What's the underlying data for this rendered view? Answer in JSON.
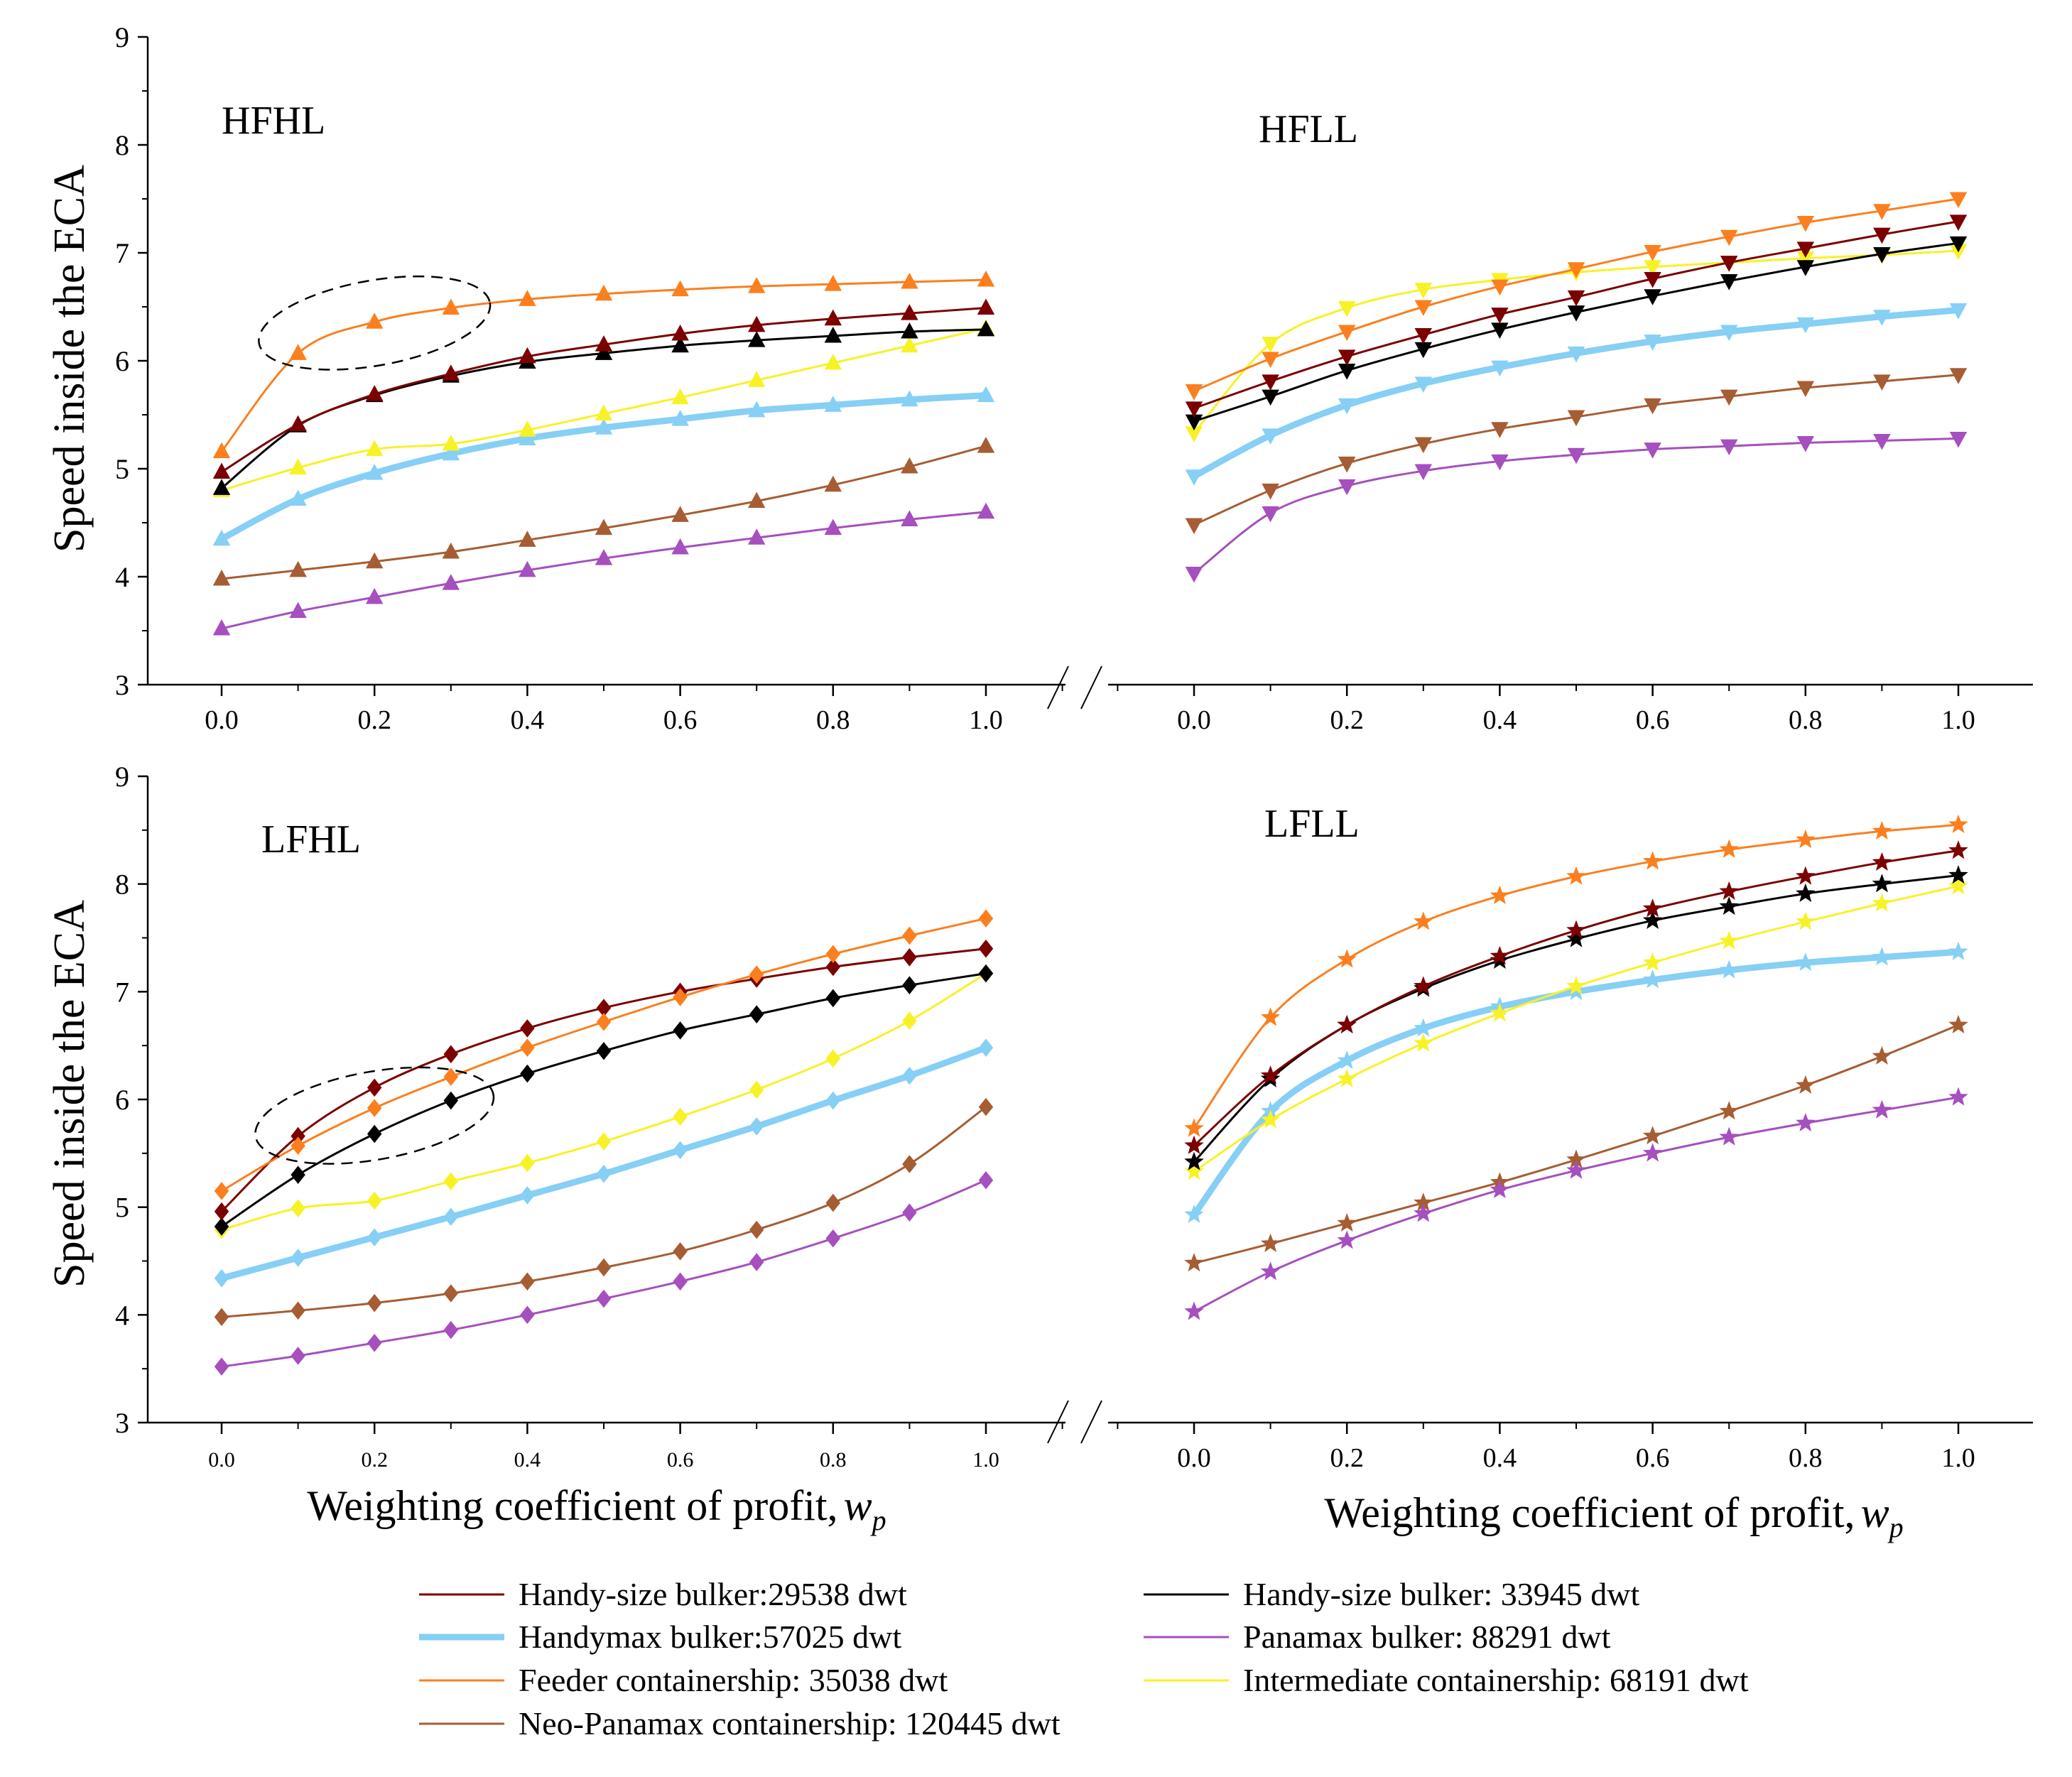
{
  "figure": {
    "ylabel": "Speed inside the ECA",
    "xlabel_main": "Weighting coefficient of profit,",
    "xlabel_symbol": "w",
    "xlabel_subscript": "p"
  },
  "styles": [
    {
      "id": "s1",
      "color": "#7b0000",
      "stroke_width": 3,
      "legend_text": "Handy-size bulker:29538 dwt"
    },
    {
      "id": "s2",
      "color": "#000000",
      "stroke_width": 3,
      "legend_text": "Handy-size bulker: 33945 dwt"
    },
    {
      "id": "s3",
      "color": "#86cff5",
      "stroke_width": 9,
      "legend_text": "Handymax bulker:57025 dwt"
    },
    {
      "id": "s4",
      "color": "#a64fbe",
      "stroke_width": 3,
      "legend_text": "Panamax bulker: 88291 dwt"
    },
    {
      "id": "s5",
      "color": "#fb7f1e",
      "stroke_width": 3,
      "legend_text": "Feeder containership: 35038 dwt"
    },
    {
      "id": "s6",
      "color": "#f7f227",
      "stroke_width": 3,
      "legend_text": "Intermediate containership: 68191 dwt"
    },
    {
      "id": "s7",
      "color": "#a65d33",
      "stroke_width": 3,
      "legend_text": "Neo-Panamax containership: 120445 dwt"
    }
  ],
  "chart_data": [
    {
      "id": "HFHL",
      "type": "line",
      "title": "HFHL",
      "marker": "triangle-up",
      "x": [
        0.0,
        0.1,
        0.2,
        0.3,
        0.4,
        0.5,
        0.6,
        0.7,
        0.8,
        0.9,
        1.0
      ],
      "xticks": [
        "0.0",
        "0.2",
        "0.4",
        "0.6",
        "0.8",
        "1.0"
      ],
      "yticks": [
        "3",
        "4",
        "5",
        "6",
        "7",
        "8",
        "9"
      ],
      "ylim": [
        3,
        9
      ],
      "series": [
        {
          "style": "s1",
          "values": [
            4.97,
            5.41,
            5.69,
            5.88,
            6.04,
            6.15,
            6.25,
            6.33,
            6.39,
            6.44,
            6.49
          ]
        },
        {
          "style": "s2",
          "values": [
            4.82,
            5.4,
            5.68,
            5.86,
            5.99,
            6.07,
            6.14,
            6.19,
            6.23,
            6.27,
            6.29
          ]
        },
        {
          "style": "s3",
          "values": [
            4.35,
            4.72,
            4.96,
            5.14,
            5.28,
            5.38,
            5.46,
            5.54,
            5.59,
            5.64,
            5.68
          ]
        },
        {
          "style": "s4",
          "values": [
            3.52,
            3.68,
            3.81,
            3.94,
            4.06,
            4.17,
            4.27,
            4.36,
            4.45,
            4.53,
            4.6
          ]
        },
        {
          "style": "s5",
          "values": [
            5.16,
            6.07,
            6.36,
            6.49,
            6.57,
            6.62,
            6.66,
            6.69,
            6.71,
            6.73,
            6.75
          ]
        },
        {
          "style": "s6",
          "values": [
            4.8,
            5.01,
            5.18,
            5.23,
            5.36,
            5.51,
            5.66,
            5.82,
            5.98,
            6.14,
            6.3
          ]
        },
        {
          "style": "s7",
          "values": [
            3.98,
            4.06,
            4.14,
            4.23,
            4.34,
            4.45,
            4.57,
            4.7,
            4.85,
            5.02,
            5.21
          ]
        }
      ],
      "annotation": "dashed ellipse around w_p 0.05-0.35"
    },
    {
      "id": "HFLL",
      "type": "line",
      "title": "HFLL",
      "marker": "triangle-down",
      "x": [
        0.0,
        0.1,
        0.2,
        0.3,
        0.4,
        0.5,
        0.6,
        0.7,
        0.8,
        0.9,
        1.0
      ],
      "xticks": [
        "0.0",
        "0.2",
        "0.4",
        "0.6",
        "0.8",
        "1.0"
      ],
      "yticks": [],
      "ylim": [
        3,
        9
      ],
      "series": [
        {
          "style": "s1",
          "values": [
            5.56,
            5.81,
            6.04,
            6.24,
            6.43,
            6.59,
            6.76,
            6.91,
            7.04,
            7.17,
            7.29
          ]
        },
        {
          "style": "s2",
          "values": [
            5.44,
            5.67,
            5.91,
            6.11,
            6.29,
            6.45,
            6.6,
            6.74,
            6.87,
            6.99,
            7.09
          ]
        },
        {
          "style": "s3",
          "values": [
            4.93,
            5.31,
            5.59,
            5.79,
            5.94,
            6.07,
            6.18,
            6.27,
            6.34,
            6.41,
            6.47
          ]
        },
        {
          "style": "s4",
          "values": [
            4.03,
            4.59,
            4.84,
            4.98,
            5.07,
            5.13,
            5.18,
            5.21,
            5.24,
            5.26,
            5.28
          ]
        },
        {
          "style": "s5",
          "values": [
            5.72,
            6.02,
            6.27,
            6.5,
            6.69,
            6.85,
            7.01,
            7.15,
            7.28,
            7.39,
            7.5
          ]
        },
        {
          "style": "s6",
          "values": [
            5.33,
            6.16,
            6.49,
            6.66,
            6.75,
            6.82,
            6.87,
            6.91,
            6.95,
            6.98,
            7.02
          ]
        },
        {
          "style": "s7",
          "values": [
            4.48,
            4.8,
            5.05,
            5.23,
            5.37,
            5.48,
            5.59,
            5.67,
            5.75,
            5.81,
            5.87
          ]
        }
      ]
    },
    {
      "id": "LFHL",
      "type": "line",
      "title": "LFHL",
      "marker": "diamond",
      "x": [
        0.0,
        0.1,
        0.2,
        0.3,
        0.4,
        0.5,
        0.6,
        0.7,
        0.8,
        0.9,
        1.0
      ],
      "xticks": [
        "0.0",
        "0.2",
        "0.4",
        "0.6",
        "0.8",
        "1.0"
      ],
      "yticks": [
        "3",
        "4",
        "5",
        "6",
        "7",
        "8",
        "9"
      ],
      "ylim": [
        3,
        9
      ],
      "series": [
        {
          "style": "s1",
          "values": [
            4.96,
            5.66,
            6.11,
            6.42,
            6.66,
            6.85,
            7.0,
            7.12,
            7.23,
            7.32,
            7.4
          ]
        },
        {
          "style": "s2",
          "values": [
            4.82,
            5.3,
            5.68,
            5.99,
            6.24,
            6.45,
            6.64,
            6.79,
            6.94,
            7.06,
            7.17
          ]
        },
        {
          "style": "s3",
          "values": [
            4.34,
            4.53,
            4.72,
            4.91,
            5.11,
            5.31,
            5.53,
            5.75,
            5.99,
            6.22,
            6.48
          ]
        },
        {
          "style": "s4",
          "values": [
            3.52,
            3.62,
            3.74,
            3.86,
            4.0,
            4.15,
            4.31,
            4.49,
            4.71,
            4.95,
            5.25
          ]
        },
        {
          "style": "s5",
          "values": [
            5.15,
            5.57,
            5.92,
            6.21,
            6.48,
            6.72,
            6.95,
            7.16,
            7.35,
            7.52,
            7.68
          ]
        },
        {
          "style": "s6",
          "values": [
            4.79,
            4.99,
            5.06,
            5.24,
            5.41,
            5.61,
            5.84,
            6.09,
            6.38,
            6.73,
            7.17
          ]
        },
        {
          "style": "s7",
          "values": [
            3.98,
            4.04,
            4.11,
            4.2,
            4.31,
            4.44,
            4.59,
            4.79,
            5.04,
            5.4,
            5.93
          ]
        }
      ],
      "annotation": "dashed ellipse around w_p 0.05-0.35"
    },
    {
      "id": "LFLL",
      "type": "line",
      "title": "LFLL",
      "marker": "star",
      "x": [
        0.0,
        0.1,
        0.2,
        0.3,
        0.4,
        0.5,
        0.6,
        0.7,
        0.8,
        0.9,
        1.0
      ],
      "xticks": [
        "0.0",
        "0.2",
        "0.4",
        "0.6",
        "0.8",
        "1.0"
      ],
      "yticks": [],
      "ylim": [
        3,
        9
      ],
      "series": [
        {
          "style": "s1",
          "values": [
            5.57,
            6.22,
            6.69,
            7.05,
            7.33,
            7.57,
            7.77,
            7.93,
            8.07,
            8.2,
            8.31
          ]
        },
        {
          "style": "s2",
          "values": [
            5.42,
            6.19,
            6.69,
            7.03,
            7.29,
            7.49,
            7.66,
            7.79,
            7.91,
            8.0,
            8.08
          ]
        },
        {
          "style": "s3",
          "values": [
            4.93,
            5.89,
            6.36,
            6.66,
            6.86,
            7.0,
            7.11,
            7.2,
            7.27,
            7.32,
            7.37
          ]
        },
        {
          "style": "s4",
          "values": [
            4.03,
            4.4,
            4.69,
            4.94,
            5.16,
            5.34,
            5.5,
            5.65,
            5.78,
            5.9,
            6.02
          ]
        },
        {
          "style": "s5",
          "values": [
            5.73,
            6.76,
            7.3,
            7.65,
            7.89,
            8.07,
            8.21,
            8.32,
            8.41,
            8.49,
            8.55
          ]
        },
        {
          "style": "s6",
          "values": [
            5.33,
            5.81,
            6.19,
            6.52,
            6.8,
            7.05,
            7.27,
            7.47,
            7.65,
            7.82,
            7.98
          ]
        },
        {
          "style": "s7",
          "values": [
            4.48,
            4.66,
            4.85,
            5.04,
            5.23,
            5.44,
            5.66,
            5.89,
            6.13,
            6.4,
            6.69
          ]
        }
      ]
    }
  ]
}
